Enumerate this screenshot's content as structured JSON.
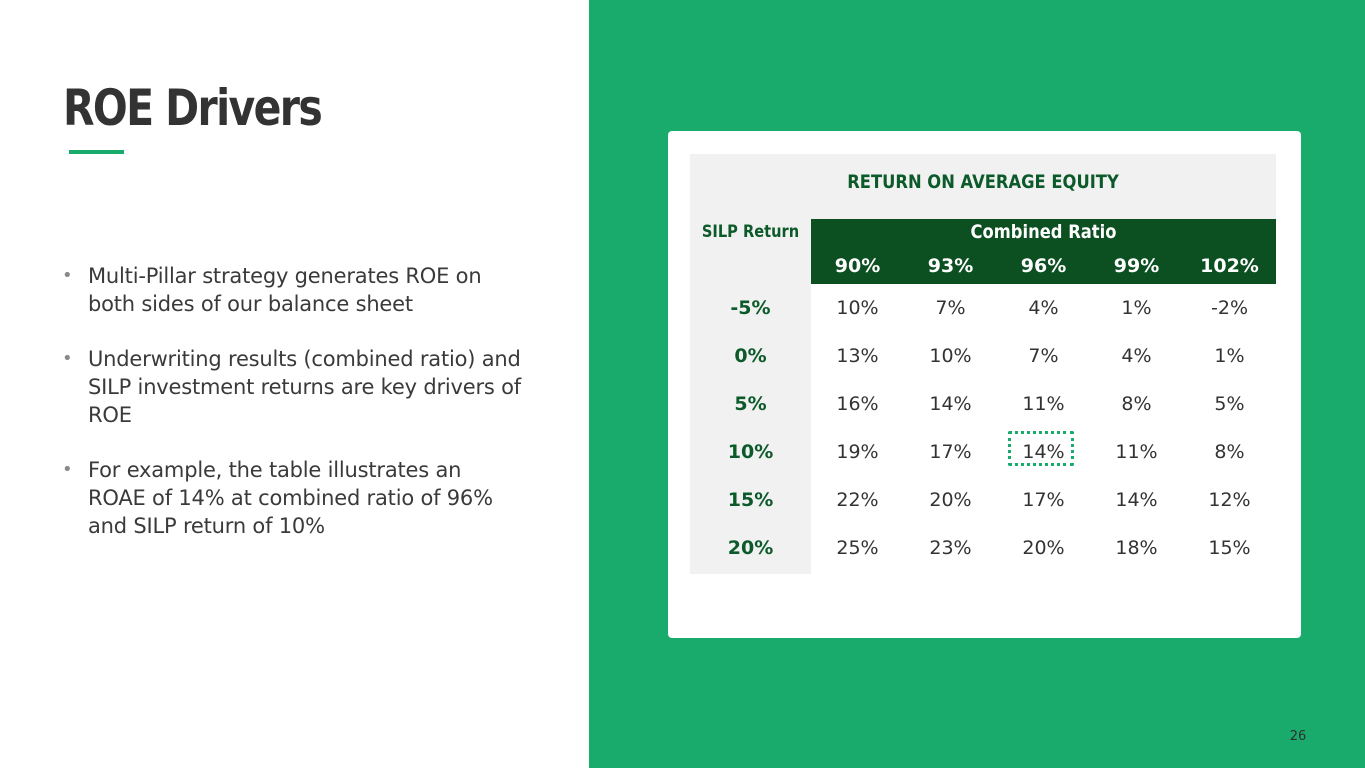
{
  "slide": {
    "title": "ROE Drivers",
    "bullets": [
      "Multi-Pillar strategy generates ROE on both sides of our balance sheet",
      "Underwriting results (combined ratio) and SILP investment returns are key drivers of ROE",
      "For example, the table illustrates an ROAE of 14% at combined ratio of 96% and SILP return of 10%"
    ],
    "page_number": "26"
  },
  "colors": {
    "accent_green": "#18ab6c",
    "dark_green": "#0c4f21",
    "header_text_green": "#0c5a2a",
    "grey_fill": "#f1f1f1"
  },
  "table": {
    "title": "RETURN ON AVERAGE EQUITY",
    "row_header_label": "SILP Return",
    "column_group_label": "Combined Ratio",
    "columns": [
      "90%",
      "93%",
      "96%",
      "99%",
      "102%"
    ],
    "rows": [
      {
        "label": "-5%",
        "values": [
          "10%",
          "7%",
          "4%",
          "1%",
          "-2%"
        ]
      },
      {
        "label": "0%",
        "values": [
          "13%",
          "10%",
          "7%",
          "4%",
          "1%"
        ]
      },
      {
        "label": "5%",
        "values": [
          "16%",
          "14%",
          "11%",
          "8%",
          "5%"
        ]
      },
      {
        "label": "10%",
        "values": [
          "19%",
          "17%",
          "14%",
          "11%",
          "8%"
        ]
      },
      {
        "label": "15%",
        "values": [
          "22%",
          "20%",
          "17%",
          "14%",
          "12%"
        ]
      },
      {
        "label": "20%",
        "values": [
          "25%",
          "23%",
          "20%",
          "18%",
          "15%"
        ]
      }
    ],
    "highlighted_cell": {
      "row": 3,
      "column": 2
    }
  }
}
